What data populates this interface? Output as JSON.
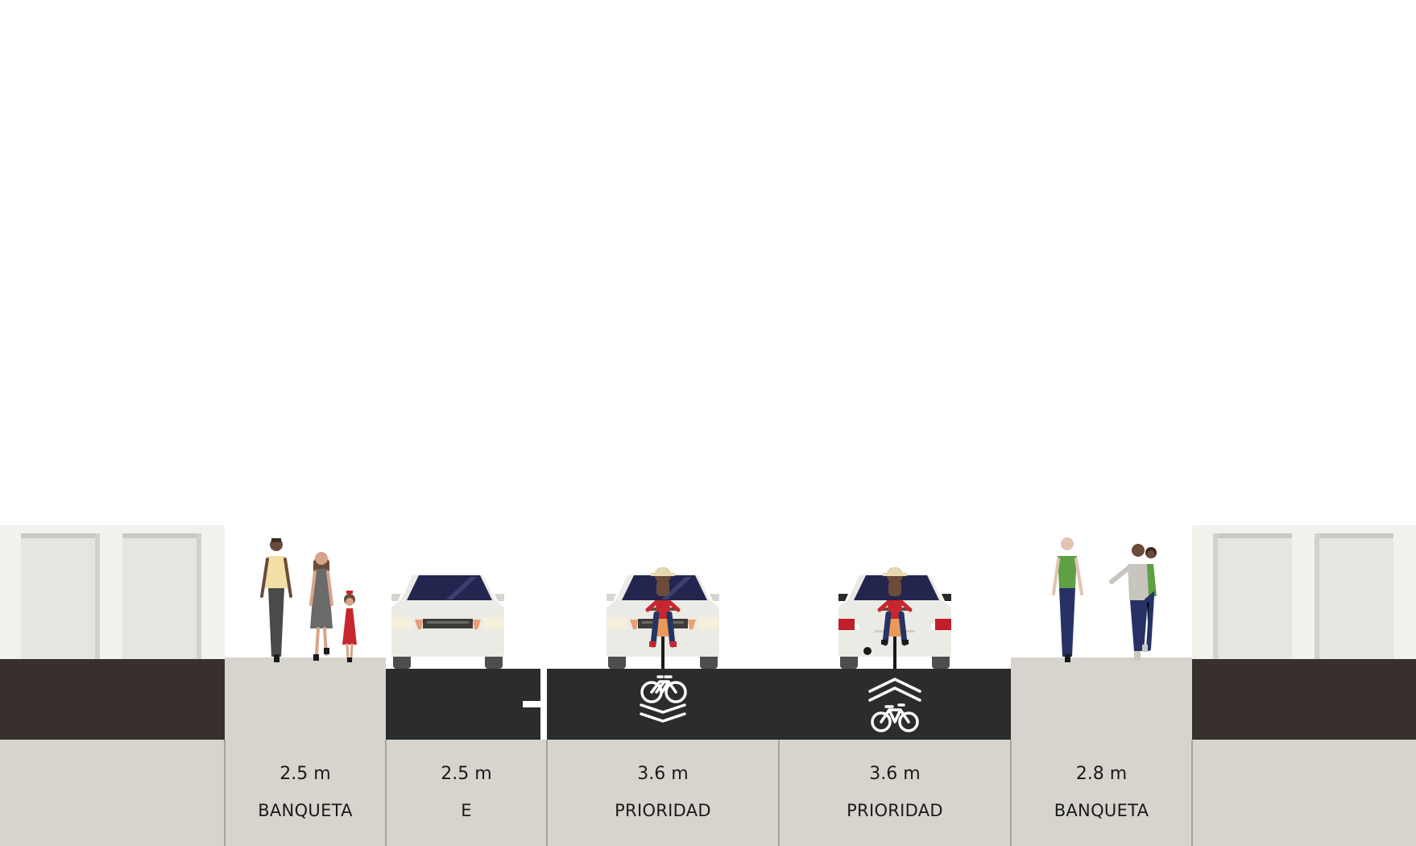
{
  "street": {
    "colors": {
      "sky": "#ffffff",
      "building_face": "#f2f1ec",
      "building_panel": "#e6e5e1",
      "building_panel_edge": "#c9c8c2",
      "building_base": "#37302d",
      "sidewalk": "#d7d4cd",
      "asphalt": "#2a2d2b",
      "lane_marking": "#ffffff",
      "divider_line": "#a6a39c",
      "car_body": "#ebebe6",
      "car_glass": "#24254e",
      "tire": "#4d4d4d"
    },
    "segments": [
      {
        "id": "seg-sidewalk-left",
        "width_label": "2.5 m",
        "name": "BANQUETA"
      },
      {
        "id": "seg-parking",
        "width_label": "2.5 m",
        "name": "E"
      },
      {
        "id": "seg-shared-1",
        "width_label": "3.6 m",
        "name": "PRIORIDAD"
      },
      {
        "id": "seg-shared-2",
        "width_label": "3.6 m",
        "name": "PRIORIDAD"
      },
      {
        "id": "seg-sidewalk-right",
        "width_label": "2.8 m",
        "name": "BANQUETA"
      }
    ],
    "icons": [
      "pedestrian-icon",
      "car-front-icon",
      "car-rear-icon",
      "cyclist-icon",
      "tandem-bike-icon",
      "sharrow-icon",
      "parking-tick-icon"
    ]
  }
}
